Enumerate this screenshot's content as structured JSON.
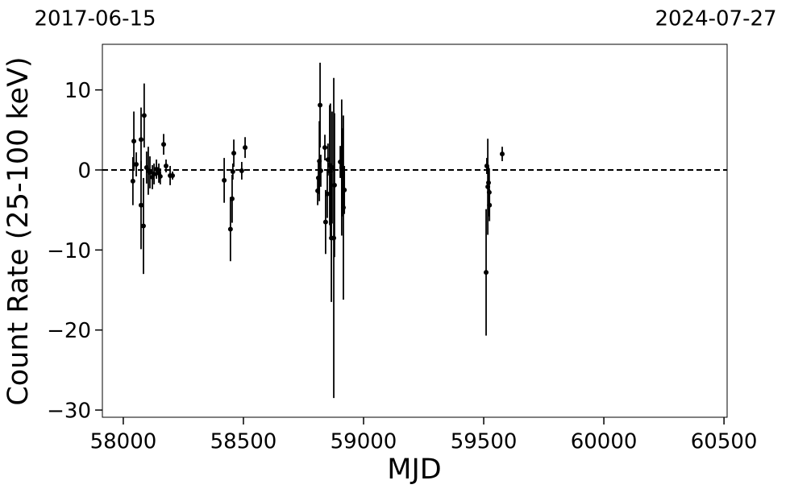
{
  "chart_data": {
    "type": "errorbar",
    "top_labels": [
      "2017-06-15",
      "2024-07-27"
    ],
    "xlabel": "MJD",
    "ylabel": "Count Rate (25-100 keV)",
    "xlim": [
      57913,
      60513
    ],
    "ylim": [
      -30.9,
      15.7
    ],
    "xticks": [
      58000,
      58500,
      59000,
      59500,
      60000,
      60500
    ],
    "yticks": [
      {
        "value": -30,
        "label": "−30"
      },
      {
        "value": -20,
        "label": "−20"
      },
      {
        "value": -10,
        "label": "−10"
      },
      0,
      10
    ],
    "hline": 0,
    "color": "#000000",
    "series": [
      {
        "name": null,
        "x": [
          58040,
          58044,
          58054,
          58074,
          58074,
          58084,
          58087,
          58097,
          58104,
          58111,
          58121,
          58128,
          58138,
          58148,
          58154,
          58168,
          58178,
          58195,
          58205,
          58420,
          58446,
          58453,
          58456,
          58460,
          58493,
          58507,
          58809,
          58812,
          58816,
          58819,
          58822,
          58839,
          58842,
          58849,
          58852,
          58859,
          58862,
          58866,
          58869,
          58876,
          58879,
          58903,
          58909,
          58913,
          58916,
          58920,
          59510,
          59513,
          59517,
          59520,
          59523,
          59524,
          59577
        ],
        "values": [
          -1.4,
          3.6,
          0.7,
          3.8,
          -4.4,
          -7,
          6.8,
          0.3,
          -0.1,
          -0.3,
          -0.9,
          -0.5,
          0.1,
          -0.4,
          -0.8,
          3.2,
          0.5,
          -0.7,
          -0.7,
          -1.3,
          -7.4,
          -3.6,
          -0.2,
          2.1,
          -0.1,
          2.8,
          -2.6,
          -1,
          1.1,
          8.1,
          -0.1,
          2.8,
          -6.5,
          -3,
          1.3,
          0.6,
          -0.2,
          -8.5,
          0.3,
          -8.5,
          -1.9,
          1,
          0.3,
          -0.3,
          -4.7,
          -2.5,
          -12.8,
          0.5,
          -2.1,
          -1.6,
          -2.8,
          -4.4,
          2
        ],
        "errors": [
          3,
          3.7,
          1.5,
          4,
          5.5,
          6,
          4,
          2,
          3,
          2,
          1.5,
          1.3,
          1.2,
          1.2,
          1,
          1.3,
          0.8,
          1.2,
          0.5,
          2.8,
          4,
          3,
          1,
          1.7,
          1.1,
          1.3,
          1.8,
          2,
          5,
          5.3,
          2,
          1.6,
          4,
          3,
          2,
          7.5,
          8.5,
          8,
          7,
          20,
          9,
          2,
          8.5,
          5.5,
          11.5,
          3,
          7.9,
          1,
          6,
          2,
          3,
          2,
          0.9
        ]
      }
    ]
  }
}
